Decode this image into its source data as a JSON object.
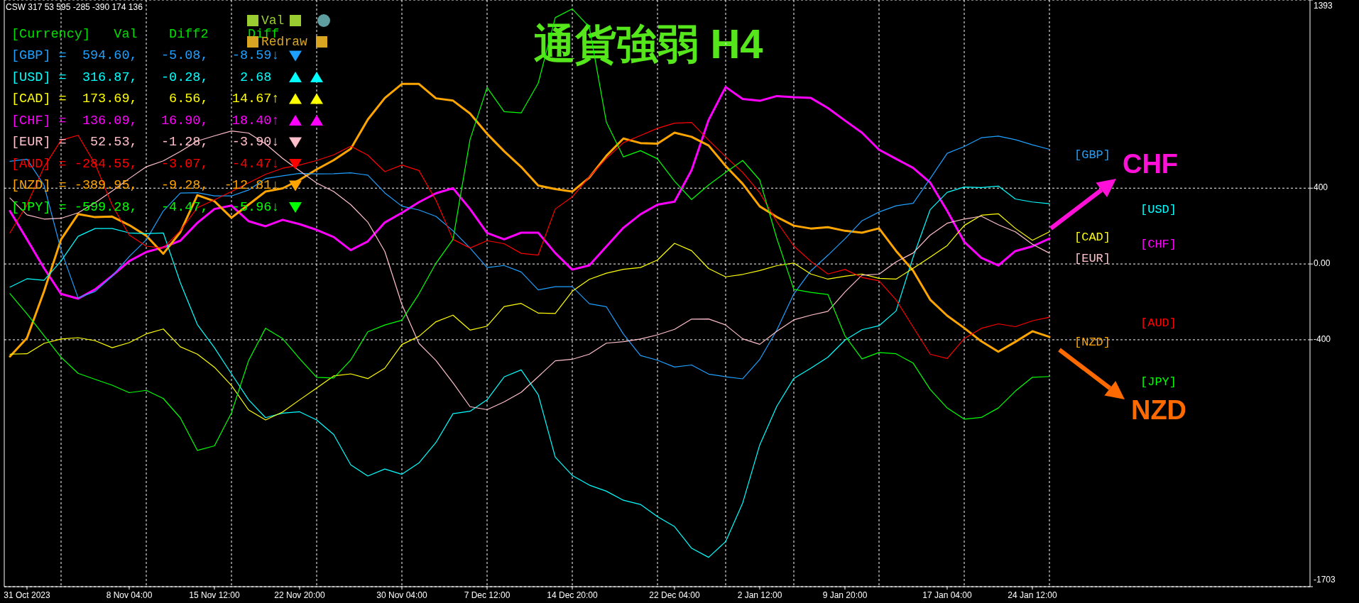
{
  "chart_data": {
    "type": "line",
    "title": "通貨強弱 H4",
    "categories": [
      null,
      "31 Oct 2023",
      null,
      null,
      null,
      null,
      null,
      "8 Nov 04:00",
      null,
      null,
      null,
      null,
      "15 Nov 12:00",
      null,
      null,
      null,
      null,
      "22 Nov 20:00",
      null,
      null,
      null,
      null,
      null,
      "30 Nov 04:00",
      null,
      null,
      null,
      null,
      "7 Dec 12:00",
      null,
      null,
      null,
      null,
      "14 Dec 20:00",
      null,
      null,
      null,
      null,
      null,
      "22 Dec 04:00",
      null,
      null,
      null,
      null,
      "2 Jan 12:00",
      null,
      null,
      null,
      null,
      "9 Jan 20:00",
      null,
      null,
      null,
      null,
      null,
      "17 Jan 04:00",
      null,
      null,
      null,
      null,
      "24 Jan 12:00",
      null
    ],
    "ylim": [
      -1703,
      1393
    ],
    "yticks": [
      1393,
      400,
      {
        "value": 0,
        "label": "0.00"
      },
      -400,
      -1703
    ],
    "grid": true,
    "legend": "right",
    "annotations": [
      "CSW 317 53 595 -285 -390 174 136",
      "[Currency]   Val    Diff2     Diff",
      "[GBP] =  594.60,   -5.08,   -8.59↓",
      "[USD] =  316.87,   -0.28,    2.68",
      "[CAD] =  173.69,    6.56,   14.67↑",
      "[CHF] =  136.09,   16.90,   18.40↑",
      "[EUR] =   52.53,   -1.28,   -3.90↓",
      "[AUD] = -284.55,   -3.07,   -4.47↓",
      "[NZD] = -389.95,   -9.28,  -12.81↓",
      "[JPY] = -599.28,   -4.47,   -5.96↓",
      "Val",
      "Redraw",
      "CHF",
      "NZD"
    ],
    "series": [
      {
        "name": "[GBP]",
        "color": "#1ea0ff",
        "values": [
          542,
          553,
          416,
          73,
          -179,
          -145,
          -64,
          39,
          127,
          280,
          374,
          376,
          359,
          359,
          390,
          451,
          465,
          478,
          475,
          476,
          481,
          469,
          375,
          305,
          285,
          251,
          175,
          84,
          -19,
          -8,
          -42,
          -137,
          -120,
          -120,
          -210,
          -226,
          -370,
          -483,
          -508,
          -544,
          -533,
          -581,
          -595,
          -606,
          -504,
          -349,
          -158,
          -36,
          46,
          133,
          228,
          274,
          307,
          320,
          450,
          584,
          620,
          666,
          675,
          656,
          629,
          605
        ]
      },
      {
        "name": "[USD]",
        "color": "#00ffff",
        "values": [
          -122,
          -78,
          -86,
          16,
          146,
          187,
          187,
          164,
          160,
          164,
          -99,
          -320,
          -442,
          -580,
          -716,
          -811,
          -787,
          -780,
          -823,
          -900,
          -1060,
          -1119,
          -1082,
          -1110,
          -1050,
          -942,
          -790,
          -777,
          -717,
          -596,
          -559,
          -690,
          -1019,
          -1116,
          -1167,
          -1199,
          -1247,
          -1269,
          -1333,
          -1386,
          -1500,
          -1548,
          -1465,
          -1261,
          -955,
          -751,
          -604,
          -550,
          -492,
          -402,
          -347,
          -326,
          -248,
          36,
          286,
          378,
          406,
          403,
          411,
          343,
          327,
          318
        ]
      },
      {
        "name": "[CAD]",
        "color": "#ffff00",
        "values": [
          -476,
          -474,
          -419,
          -396,
          -389,
          -405,
          -442,
          -415,
          -369,
          -343,
          -437,
          -476,
          -545,
          -641,
          -770,
          -823,
          -781,
          -717,
          -655,
          -591,
          -580,
          -605,
          -550,
          -425,
          -382,
          -305,
          -270,
          -349,
          -328,
          -225,
          -208,
          -259,
          -261,
          -144,
          -81,
          -49,
          -28,
          -19,
          21,
          109,
          70,
          -24,
          -68,
          -55,
          -35,
          -9,
          5,
          -53,
          -80,
          -65,
          -53,
          -76,
          -80,
          -23,
          36,
          97,
          203,
          257,
          265,
          188,
          125,
          170
        ]
      },
      {
        "name": "[CHF]",
        "color": "#ff00ff",
        "values": [
          279,
          130,
          -22,
          -158,
          -183,
          -134,
          -62,
          15,
          63,
          88,
          123,
          217,
          290,
          308,
          226,
          199,
          233,
          210,
          180,
          142,
          73,
          119,
          219,
          270,
          326,
          373,
          400,
          290,
          164,
          130,
          165,
          165,
          58,
          -30,
          -7,
          92,
          191,
          262,
          313,
          329,
          495,
          760,
          934,
          871,
          861,
          886,
          880,
          876,
          823,
          757,
          693,
          603,
          555,
          507,
          430,
          280,
          117,
          33,
          -8,
          68,
          93,
          134
        ]
      },
      {
        "name": "[EUR]",
        "color": "#ffc0cb",
        "values": [
          348,
          259,
          237,
          241,
          270,
          323,
          385,
          451,
          513,
          544,
          594,
          649,
          676,
          702,
          691,
          634,
          557,
          492,
          427,
          382,
          313,
          221,
          66,
          -214,
          -419,
          -509,
          -627,
          -753,
          -769,
          -728,
          -677,
          -595,
          -511,
          -503,
          -476,
          -418,
          -410,
          -396,
          -374,
          -345,
          -291,
          -290,
          -322,
          -395,
          -424,
          -355,
          -295,
          -270,
          -250,
          -148,
          -59,
          -54,
          11,
          58,
          152,
          215,
          237,
          252,
          207,
          170,
          104,
          57
        ]
      },
      {
        "name": "[AUD]",
        "color": "#ff0000",
        "values": [
          164,
          313,
          511,
          653,
          679,
          527,
          310,
          153,
          94,
          84,
          176,
          297,
          338,
          382,
          428,
          473,
          505,
          522,
          546,
          576,
          622,
          574,
          487,
          522,
          493,
          336,
          130,
          84,
          123,
          107,
          56,
          47,
          290,
          354,
          460,
          557,
          640,
          678,
          716,
          743,
          747,
          653,
          566,
          483,
          376,
          223,
          95,
          14,
          -53,
          -29,
          -71,
          -89,
          -189,
          -333,
          -476,
          -499,
          -394,
          -340,
          -316,
          -331,
          -300,
          -281
        ]
      },
      {
        "name": "[NZD]",
        "color": "#ffa500",
        "values": [
          -488,
          -391,
          -145,
          130,
          263,
          247,
          250,
          205,
          149,
          54,
          168,
          363,
          331,
          244,
          313,
          382,
          399,
          444,
          499,
          548,
          608,
          762,
          876,
          950,
          950,
          874,
          862,
          794,
          687,
          595,
          512,
          414,
          395,
          382,
          456,
          571,
          662,
          638,
          635,
          693,
          671,
          625,
          517,
          423,
          304,
          248,
          202,
          187,
          194,
          175,
          165,
          188,
          69,
          -35,
          -188,
          -273,
          -338,
          -408,
          -463,
          -411,
          -355,
          -385
        ]
      },
      {
        "name": "[JPY]",
        "color": "#00ff00",
        "values": [
          -156,
          -263,
          -378,
          -492,
          -577,
          -609,
          -640,
          -679,
          -667,
          -710,
          -812,
          -984,
          -960,
          -786,
          -511,
          -339,
          -394,
          -500,
          -598,
          -602,
          -507,
          -358,
          -322,
          -297,
          -158,
          4,
          130,
          657,
          931,
          804,
          797,
          954,
          1300,
          1346,
          1250,
          748,
          565,
          598,
          555,
          437,
          340,
          417,
          483,
          546,
          443,
          135,
          -134,
          -150,
          -161,
          -379,
          -501,
          -467,
          -474,
          -523,
          -662,
          -760,
          -819,
          -810,
          -760,
          -671,
          -598,
          -594
        ]
      }
    ]
  }
}
